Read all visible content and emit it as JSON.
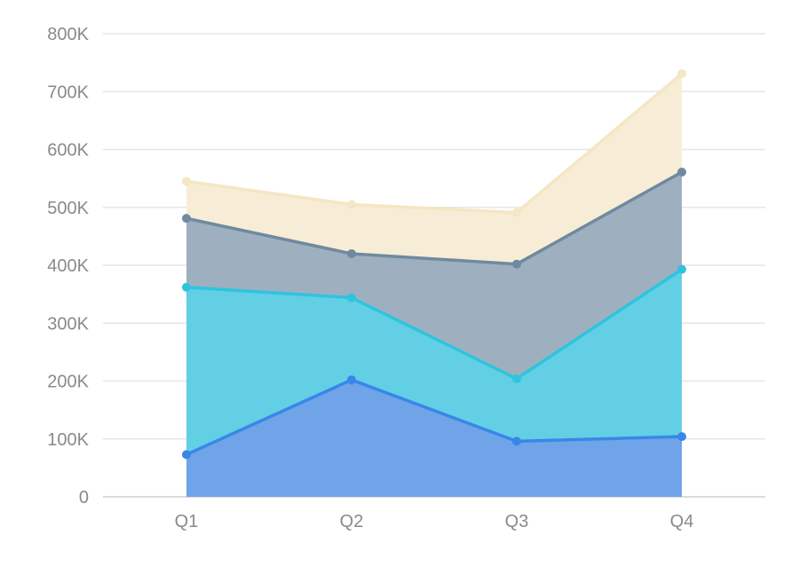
{
  "chart_data": {
    "type": "area",
    "stacked": true,
    "categories": [
      "Q1",
      "Q2",
      "Q3",
      "Q4"
    ],
    "ylim": [
      0,
      800000
    ],
    "y_ticks": [
      0,
      100000,
      200000,
      300000,
      400000,
      500000,
      600000,
      700000,
      800000
    ],
    "y_tick_labels": [
      "0",
      "100K",
      "200K",
      "300K",
      "400K",
      "500K",
      "600K",
      "700K",
      "800K"
    ],
    "grid": true,
    "legend": "none",
    "series": [
      {
        "values": [
          73000,
          202000,
          96000,
          104000
        ],
        "color": "#3a86e8",
        "fill": "#6fa4e8"
      },
      {
        "values": [
          289000,
          142000,
          108000,
          289000
        ],
        "color": "#2ec4de",
        "fill": "#62cfe5"
      },
      {
        "values": [
          119000,
          76000,
          198000,
          168000
        ],
        "color": "#6f8aa0",
        "fill": "#9eb0bf"
      },
      {
        "values": [
          64000,
          85000,
          89000,
          170000
        ],
        "color": "#f5e6c4",
        "fill": "#f7edd6"
      }
    ]
  }
}
